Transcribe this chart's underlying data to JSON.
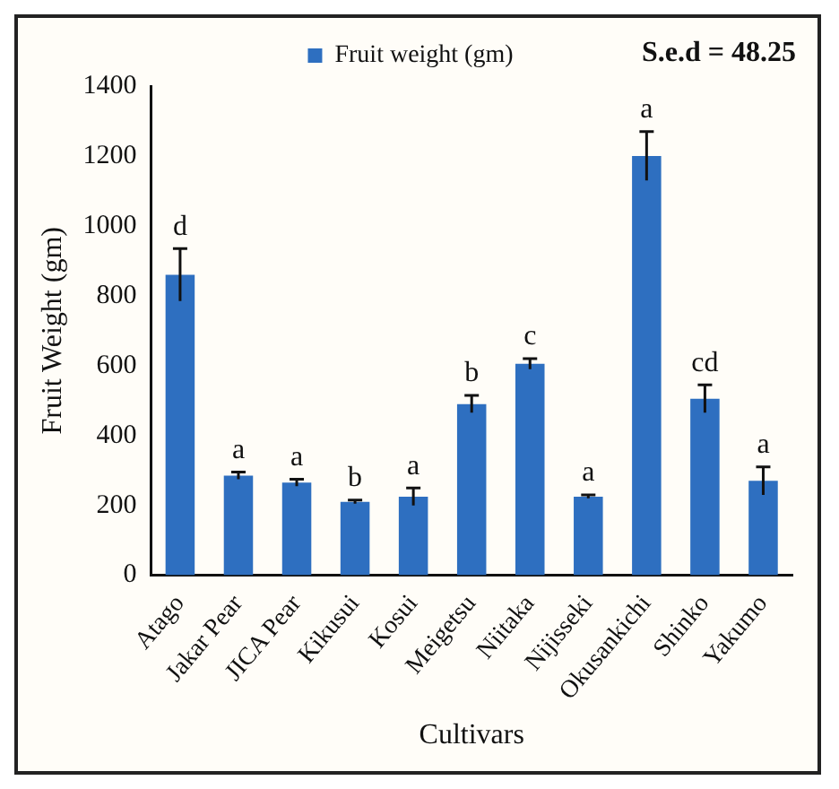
{
  "chart_data": {
    "type": "bar",
    "xlabel": "Cultivars",
    "ylabel": "Fruit Weight (gm)",
    "categories": [
      "Atago",
      "Jakar Pear",
      "JICA Pear",
      "Kikusui",
      "Kosui",
      "Meigetsu",
      "Niitaka",
      "Nijisseki",
      "Okusankichi",
      "Shinko",
      "Yakumo"
    ],
    "series": [
      {
        "name": "Fruit weight (gm)",
        "color": "#2e6fc0",
        "values": [
          860,
          285,
          265,
          210,
          225,
          490,
          605,
          225,
          1200,
          505,
          270
        ],
        "errors": [
          75,
          10,
          10,
          5,
          25,
          25,
          15,
          5,
          70,
          40,
          40
        ]
      }
    ],
    "ylim": [
      0,
      1400
    ],
    "yticks": [
      0,
      200,
      400,
      600,
      800,
      1000,
      1200,
      1400
    ],
    "grid": false,
    "legend": "top",
    "annotations": [
      "S.e.d = 48.25",
      {
        "text": "d",
        "x": "Atago",
        "y": 935
      },
      {
        "text": "a",
        "x": "Jakar Pear",
        "y": 295
      },
      {
        "text": "a",
        "x": "JICA Pear",
        "y": 275
      },
      {
        "text": "b",
        "x": "Kikusui",
        "y": 215
      },
      {
        "text": "a",
        "x": "Kosui",
        "y": 250
      },
      {
        "text": "b",
        "x": "Meigetsu",
        "y": 515
      },
      {
        "text": "c",
        "x": "Niitaka",
        "y": 620
      },
      {
        "text": "a",
        "x": "Nijisseki",
        "y": 230
      },
      {
        "text": "a",
        "x": "Okusankichi",
        "y": 1270
      },
      {
        "text": "cd",
        "x": "Shinko",
        "y": 545
      },
      {
        "text": "a",
        "x": "Yakumo",
        "y": 310
      }
    ]
  }
}
